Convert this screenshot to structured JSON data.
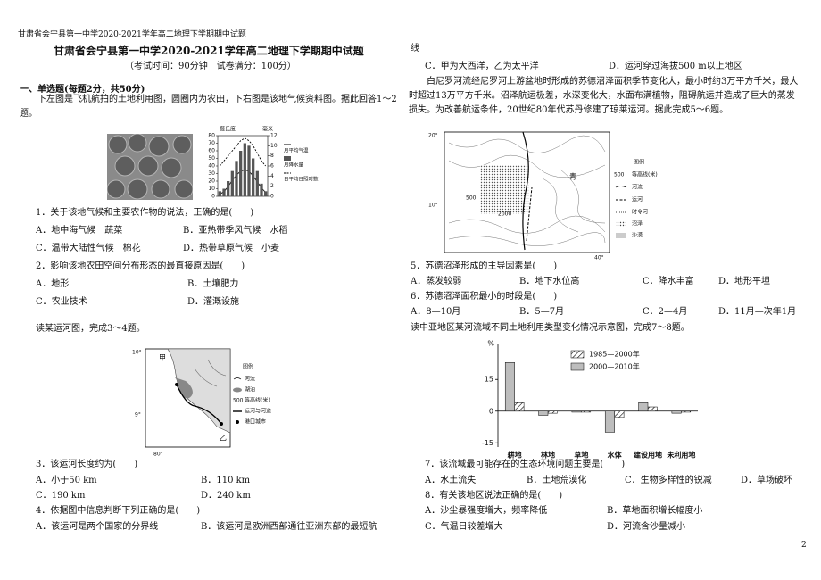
{
  "header": {
    "running_title": "甘肃省会宁县第一中学2020-2021学年高二地理下学期期中试题",
    "title": "甘肃省会宁县第一中学2020-2021学年高二地理下学期期中试题",
    "exam_info": "（考试时间：90分钟　试卷满分：100分）",
    "page_number": "2"
  },
  "section": "一、单选题(每题2分，共50分)",
  "passages": [
    "下左图是飞机航拍的土地利用图，圆圈内为农田，下右图是该地气候资料图。据此回答1～2题。",
    "读某运河图，完成3～4题。",
    "白尼罗河流经尼罗河上游盆地时形成的苏德沼泽面积季节变化大，最小时约3万平方千米，最大时超过13万平方千米。沼泽航运极差，水深变化大，水面布满植物，阻碍航运并造成了巨大的蒸发损失。为改善航运条件，20世纪80年代苏丹修建了琼莱运河。据此完成5～6题。",
    "读中亚地区某河流域不同土地利用类型变化情况示意图，完成7～8题。"
  ],
  "questions": [
    {
      "stem": "1．关于该地气候和主要农作物的说法，正确的是(　　)",
      "options": [
        "A．地中海气候　蔬菜",
        "B．亚热带季风气候　水稻",
        "C．温带大陆性气候　棉花",
        "D．热带草原气候　小麦"
      ]
    },
    {
      "stem": "2．影响该地农田空间分布形态的最直接原因是(　　)",
      "options": [
        "A．地形",
        "B．土壤肥力",
        "C．农业技术",
        "D．灌溉设施"
      ]
    },
    {
      "stem": "3．该运河长度约为(　　)",
      "options": [
        "A．小于50 km",
        "B．110 km",
        "C．190 km",
        "D．240 km"
      ]
    },
    {
      "stem": "4．依据图中信息判断下列正确的是(　　)",
      "options": [
        "A．该运河是两个国家的分界线",
        "B．该运河是欧洲西部通往亚洲东部的最短航",
        "C．甲为大西洋，乙为太平洋",
        "D．运河穿过海拔500 m以上地区"
      ],
      "continuation": "线"
    },
    {
      "stem": "5．苏德沼泽形成的主导因素是(　　)",
      "options": [
        "A．蒸发较弱",
        "B．地下水位高",
        "C．降水丰富",
        "D．地形平坦"
      ]
    },
    {
      "stem": "6．苏德沼泽面积最小的时段是(　　)",
      "options": [
        "A．8—10月",
        "B．5—7月",
        "C．2—4月",
        "D．11月—次年1月"
      ]
    },
    {
      "stem": "7．该流域最可能存在的生态环境问题主要是(　　)",
      "options": [
        "A．水土流失",
        "B．土地荒漠化",
        "C．生物多样性的锐减",
        "D．草场破坏"
      ]
    },
    {
      "stem": "8．有关该地区说法正确的是(　　)",
      "options": [
        "A．沙尘暴强度增大，频率降低",
        "B．草地面积增长幅度小",
        "C．气温日较差增大",
        "D．河流含沙量减小"
      ]
    }
  ],
  "figures": {
    "climate_chart": {
      "type": "bar",
      "y_label": "摄氏度",
      "y2_label": "毫米",
      "ylim": [
        0,
        80
      ],
      "yticks": [
        0,
        10,
        20,
        30,
        40,
        50,
        60,
        70,
        80
      ],
      "y2lim": [
        0,
        12
      ],
      "y2ticks": [
        0,
        2,
        4,
        6,
        8,
        10,
        12
      ],
      "series": [
        {
          "name": "月平均气温",
          "type": "line",
          "color": "#000000",
          "values": [
            3,
            6,
            13,
            21,
            28,
            33,
            35,
            33,
            27,
            19,
            11,
            5
          ]
        },
        {
          "name": "月降水量",
          "type": "bar",
          "axis": "y2",
          "color": "#555555",
          "values": [
            1,
            1.5,
            3,
            5,
            7,
            9,
            10.5,
            10,
            7.5,
            5,
            2.5,
            1
          ]
        },
        {
          "name": "日平均日照时数(小时)",
          "type": "dashed",
          "axis": "y2",
          "color": "#000000",
          "values": [
            6,
            7,
            8,
            9,
            10,
            11,
            11.5,
            11,
            10,
            8.5,
            7,
            6
          ]
        }
      ]
    },
    "canal_map": {
      "labels": [
        "10°",
        "9°",
        "80°",
        "甲",
        "乙"
      ],
      "legend_title": "图例",
      "contour_value": "500",
      "legend": [
        "河流",
        "湖泊",
        "等高线(米)",
        "运河与河道",
        "港口城市"
      ]
    },
    "sudd_map": {
      "labels": [
        "20°",
        "10°",
        "40°",
        "500",
        "2000",
        "青"
      ],
      "legend_title": "图例",
      "contour_value": "500",
      "legend": [
        "等高线(米)",
        "河流",
        "运河",
        "时令河",
        "沼泽",
        "沙漠"
      ]
    },
    "land_use_chart": {
      "type": "bar",
      "y_unit": "%",
      "categories": [
        "耕地",
        "林地",
        "草地",
        "水体",
        "建设用地",
        "未利用地"
      ],
      "ylim": [
        -17,
        32
      ],
      "yticks": [
        -15,
        0,
        15
      ],
      "series": [
        {
          "name": "1985—2000年",
          "pattern": "hatch",
          "values": [
            4,
            -1,
            -0.5,
            -3,
            2,
            -0.5
          ]
        },
        {
          "name": "2000—2010年",
          "color": "#bdbdbd",
          "values": [
            23,
            -2,
            -0.5,
            -10,
            4,
            -1
          ]
        }
      ]
    }
  }
}
